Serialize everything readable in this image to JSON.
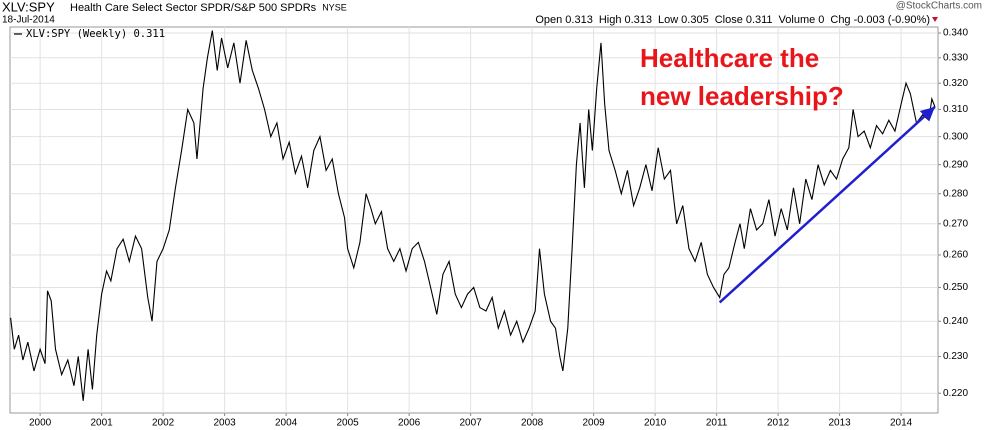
{
  "chart_data": {
    "type": "line",
    "symbol": "XLV:SPY",
    "title": "Health Care Select Sector SPDR/S&P 500 SPDRs",
    "exchange": "NYSE",
    "date": "18-Jul-2014",
    "source": "@StockCharts.com",
    "quote": [
      {
        "label": "Open",
        "value": "0.313"
      },
      {
        "label": "High",
        "value": "0.313"
      },
      {
        "label": "Low",
        "value": "0.305"
      },
      {
        "label": "Close",
        "value": "0.311"
      },
      {
        "label": "Volume",
        "value": "0"
      },
      {
        "label": "Chg",
        "value": "-0.003 (-0.90%)"
      }
    ],
    "annotation": [
      "Healthcare the",
      "new leadership?"
    ],
    "annotation_color": "#e8161b",
    "trend_arrow": {
      "x": [
        2011.05,
        2014.55
      ],
      "y": [
        0.2455,
        0.311
      ],
      "color": "#1f1fcf"
    },
    "log_scale": true,
    "grid": true,
    "xlim": [
      1999.51,
      2014.6
    ],
    "xticks": [
      2000,
      2001,
      2002,
      2003,
      2004,
      2005,
      2006,
      2007,
      2008,
      2009,
      2010,
      2011,
      2012,
      2013,
      2014
    ],
    "ylim": [
      0.2148,
      0.3425
    ],
    "yticks": [
      {
        "value": 0.22,
        "label": "0.220"
      },
      {
        "value": 0.23,
        "label": "0.230"
      },
      {
        "value": 0.24,
        "label": "0.240"
      },
      {
        "value": 0.25,
        "label": "0.250"
      },
      {
        "value": 0.26,
        "label": "0.260"
      },
      {
        "value": 0.27,
        "label": "0.270"
      },
      {
        "value": 0.28,
        "label": "0.280"
      },
      {
        "value": 0.29,
        "label": "0.290"
      },
      {
        "value": 0.3,
        "label": "0.300"
      },
      {
        "value": 0.31,
        "label": "0.310"
      },
      {
        "value": 0.32,
        "label": "0.320"
      },
      {
        "value": 0.33,
        "label": "0.330"
      },
      {
        "value": 0.34,
        "label": "0.340"
      }
    ],
    "x": [
      1999.52,
      1999.58,
      1999.65,
      1999.72,
      1999.8,
      1999.9,
      2000.0,
      2000.08,
      2000.12,
      2000.18,
      2000.25,
      2000.35,
      2000.45,
      2000.55,
      2000.62,
      2000.7,
      2000.78,
      2000.85,
      2000.92,
      2001.0,
      2001.08,
      2001.15,
      2001.25,
      2001.35,
      2001.45,
      2001.55,
      2001.65,
      2001.75,
      2001.82,
      2001.9,
      2002.0,
      2002.1,
      2002.2,
      2002.3,
      2002.4,
      2002.5,
      2002.55,
      2002.65,
      2002.72,
      2002.8,
      2002.88,
      2002.95,
      2003.05,
      2003.15,
      2003.25,
      2003.35,
      2003.45,
      2003.55,
      2003.65,
      2003.75,
      2003.85,
      2003.95,
      2004.05,
      2004.15,
      2004.25,
      2004.35,
      2004.45,
      2004.55,
      2004.65,
      2004.75,
      2004.85,
      2004.95,
      2005.0,
      2005.1,
      2005.2,
      2005.3,
      2005.38,
      2005.45,
      2005.55,
      2005.65,
      2005.75,
      2005.85,
      2005.95,
      2006.05,
      2006.15,
      2006.25,
      2006.35,
      2006.45,
      2006.55,
      2006.65,
      2006.75,
      2006.85,
      2006.95,
      2007.05,
      2007.15,
      2007.25,
      2007.35,
      2007.45,
      2007.55,
      2007.65,
      2007.75,
      2007.85,
      2007.95,
      2008.05,
      2008.12,
      2008.2,
      2008.3,
      2008.38,
      2008.45,
      2008.5,
      2008.58,
      2008.65,
      2008.72,
      2008.78,
      2008.85,
      2008.92,
      2008.98,
      2009.05,
      2009.12,
      2009.18,
      2009.25,
      2009.35,
      2009.45,
      2009.55,
      2009.65,
      2009.75,
      2009.85,
      2009.95,
      2010.05,
      2010.15,
      2010.25,
      2010.35,
      2010.45,
      2010.55,
      2010.65,
      2010.75,
      2010.85,
      2010.95,
      2011.05,
      2011.12,
      2011.2,
      2011.3,
      2011.38,
      2011.45,
      2011.55,
      2011.65,
      2011.75,
      2011.85,
      2011.95,
      2012.05,
      2012.15,
      2012.25,
      2012.35,
      2012.45,
      2012.55,
      2012.65,
      2012.75,
      2012.85,
      2012.95,
      2013.05,
      2013.15,
      2013.22,
      2013.3,
      2013.4,
      2013.5,
      2013.6,
      2013.7,
      2013.8,
      2013.9,
      2014.0,
      2014.08,
      2014.15,
      2014.25,
      2014.35,
      2014.45,
      2014.5,
      2014.55
    ],
    "series": [
      {
        "name": "XLV:SPY (Weekly) 0.311",
        "color": "#000000",
        "values": [
          0.241,
          0.232,
          0.236,
          0.229,
          0.234,
          0.226,
          0.232,
          0.228,
          0.249,
          0.246,
          0.232,
          0.225,
          0.229,
          0.222,
          0.23,
          0.218,
          0.232,
          0.221,
          0.236,
          0.248,
          0.255,
          0.252,
          0.262,
          0.265,
          0.258,
          0.266,
          0.262,
          0.247,
          0.24,
          0.258,
          0.262,
          0.268,
          0.282,
          0.295,
          0.31,
          0.305,
          0.292,
          0.318,
          0.33,
          0.341,
          0.325,
          0.338,
          0.326,
          0.336,
          0.32,
          0.337,
          0.325,
          0.318,
          0.31,
          0.3,
          0.305,
          0.292,
          0.298,
          0.287,
          0.293,
          0.282,
          0.295,
          0.3,
          0.288,
          0.292,
          0.28,
          0.272,
          0.262,
          0.256,
          0.264,
          0.28,
          0.275,
          0.27,
          0.274,
          0.262,
          0.258,
          0.262,
          0.255,
          0.262,
          0.264,
          0.258,
          0.25,
          0.242,
          0.254,
          0.258,
          0.248,
          0.244,
          0.248,
          0.25,
          0.244,
          0.243,
          0.247,
          0.238,
          0.243,
          0.236,
          0.24,
          0.234,
          0.238,
          0.243,
          0.262,
          0.248,
          0.24,
          0.238,
          0.23,
          0.226,
          0.238,
          0.262,
          0.29,
          0.305,
          0.282,
          0.31,
          0.295,
          0.318,
          0.336,
          0.312,
          0.295,
          0.288,
          0.28,
          0.288,
          0.276,
          0.282,
          0.29,
          0.281,
          0.296,
          0.285,
          0.288,
          0.27,
          0.276,
          0.262,
          0.258,
          0.264,
          0.254,
          0.25,
          0.247,
          0.254,
          0.256,
          0.264,
          0.27,
          0.262,
          0.275,
          0.268,
          0.27,
          0.278,
          0.266,
          0.275,
          0.268,
          0.282,
          0.27,
          0.285,
          0.278,
          0.29,
          0.283,
          0.288,
          0.285,
          0.292,
          0.296,
          0.31,
          0.3,
          0.302,
          0.296,
          0.304,
          0.301,
          0.306,
          0.302,
          0.312,
          0.32,
          0.316,
          0.305,
          0.308,
          0.306,
          0.314,
          0.311
        ]
      }
    ]
  }
}
